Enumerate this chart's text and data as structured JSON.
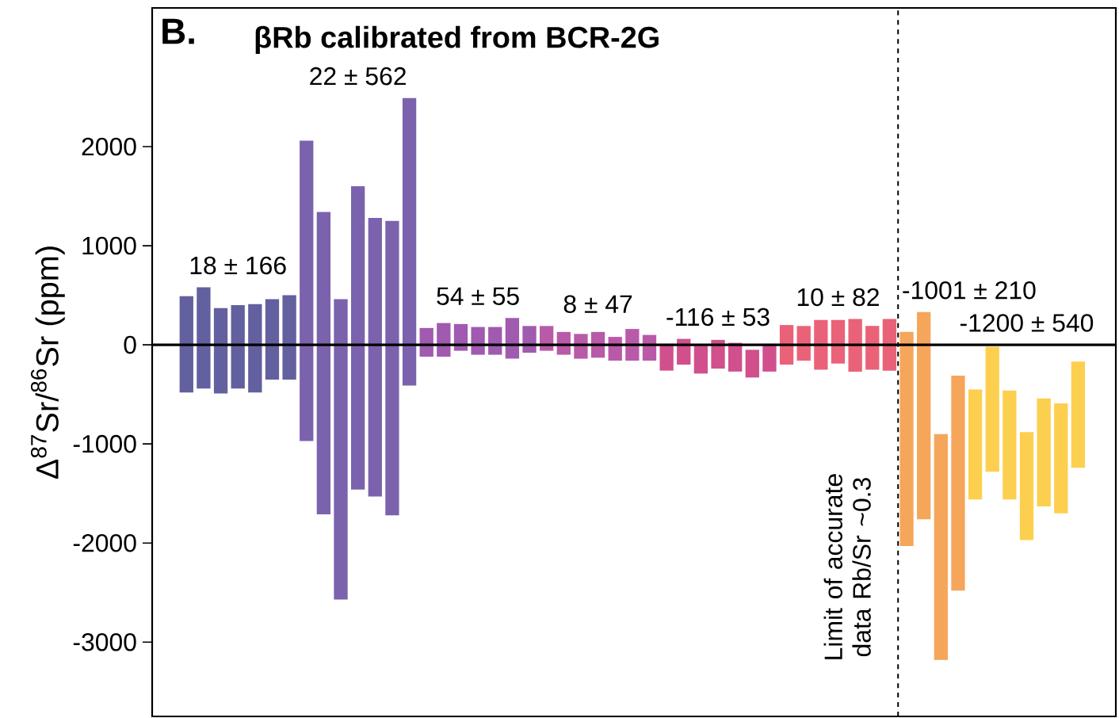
{
  "chart_data": {
    "type": "bar",
    "title": "βRb calibrated from BCR-2G",
    "ylabel": "Δ$^{87}$Sr/$^{86}$Sr (ppm)",
    "ylim": [
      -3750,
      3400
    ],
    "yticks": [
      -3000,
      -2000,
      -1000,
      0,
      1000,
      2000
    ],
    "tick_labels": "y",
    "categories": [
      null,
      null,
      null,
      null,
      null,
      null,
      null,
      null,
      null,
      null,
      null,
      null,
      null,
      null,
      null,
      null,
      null,
      null,
      null,
      null,
      null,
      null,
      null,
      null,
      null,
      null,
      null,
      null,
      null,
      null,
      null,
      null,
      null,
      null,
      null,
      null,
      null,
      null,
      null,
      null,
      null,
      null,
      null,
      null,
      null,
      null,
      null,
      null,
      null,
      null,
      null,
      null,
      null
    ],
    "base": [
      -480,
      -440,
      -490,
      -440,
      -480,
      -350,
      -350,
      -970,
      -1710,
      -2570,
      -1460,
      -1530,
      -1720,
      -410,
      -120,
      -120,
      -60,
      -100,
      -100,
      -140,
      -80,
      -60,
      -100,
      -140,
      -130,
      -160,
      -160,
      -160,
      -260,
      -200,
      -290,
      -240,
      -270,
      -330,
      -270,
      -200,
      -160,
      -250,
      -190,
      -270,
      -250,
      -260,
      -2030,
      -1760,
      -3180,
      -2480,
      -1560,
      -1280,
      -1560,
      -1970,
      -1630,
      -1700,
      -1240
    ],
    "values": [
      970,
      1020,
      860,
      840,
      890,
      810,
      850,
      3030,
      3050,
      3030,
      3060,
      2810,
      2970,
      2900,
      290,
      340,
      270,
      280,
      280,
      410,
      270,
      250,
      230,
      250,
      260,
      240,
      320,
      260,
      270,
      260,
      280,
      290,
      290,
      280,
      280,
      400,
      350,
      500,
      440,
      530,
      440,
      520,
      2160,
      2090,
      2280,
      2170,
      1110,
      1260,
      1100,
      1090,
      1090,
      1110,
      1070
    ],
    "colors": [
      "#62609e",
      "#62609e",
      "#62609e",
      "#62609e",
      "#62609e",
      "#62609e",
      "#62609e",
      "#7b62ad",
      "#7b62ad",
      "#7b62ad",
      "#7b62ad",
      "#7b62ad",
      "#7b62ad",
      "#7b62ad",
      "#a05ab0",
      "#a05ab0",
      "#a05ab0",
      "#a05ab0",
      "#a05ab0",
      "#a05ab0",
      "#a05ab0",
      "#b95aa8",
      "#b95aa8",
      "#b95aa8",
      "#b95aa8",
      "#b95aa8",
      "#b95aa8",
      "#b95aa8",
      "#d14f8d",
      "#d14f8d",
      "#d14f8d",
      "#d14f8d",
      "#d14f8d",
      "#d14f8d",
      "#d14f8d",
      "#ea6278",
      "#ea6278",
      "#ea6278",
      "#ea6278",
      "#ea6278",
      "#ea6278",
      "#ea6278",
      "#f5a65b",
      "#f5a65b",
      "#f5a65b",
      "#f5a65b",
      "#fdcf4f",
      "#fdcf4f",
      "#fdcf4f",
      "#fdcf4f",
      "#fdcf4f",
      "#fdcf4f",
      "#fdcf4f"
    ],
    "ref_lines": [
      {
        "axis": "y",
        "value": 0,
        "color": "#000000",
        "line_style": "solid"
      }
    ],
    "annotations": [
      "B.",
      "18 ± 166",
      "22 ± 562",
      "54 ± 55",
      "8 ± 47",
      "-116 ± 53",
      "10 ± 82",
      "-1001 ± 210",
      "-1200 ± 540",
      "Limit of accurate data Rb/Sr ~0.3"
    ]
  }
}
